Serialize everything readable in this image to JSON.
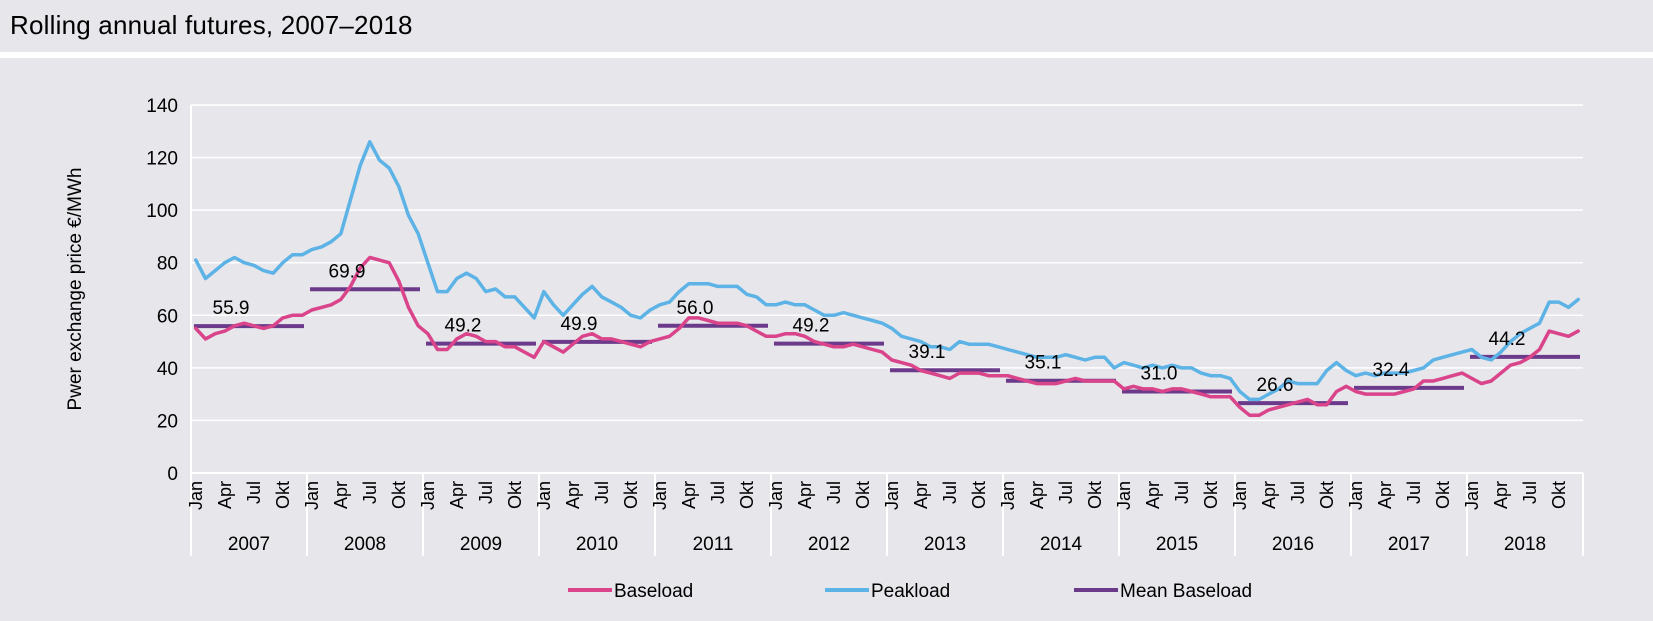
{
  "title": "Rolling annual futures, 2007–2018",
  "colors": {
    "background": "#e6e6eb",
    "baseload": "#d9448a",
    "peakload": "#5db3e6",
    "mean_baseload": "#6b3a8a",
    "grid": "#ffffff"
  },
  "chart_data": {
    "type": "line",
    "title": "",
    "ylabel": "Pwer exchange price €/MWh",
    "xlabel": "",
    "ylim": [
      0,
      140
    ],
    "yticks": [
      0,
      20,
      40,
      60,
      80,
      100,
      120,
      140
    ],
    "years": [
      "2007",
      "2008",
      "2009",
      "2010",
      "2011",
      "2012",
      "2013",
      "2014",
      "2015",
      "2016",
      "2017",
      "2018"
    ],
    "month_tick_labels": [
      "Jan",
      "Apr",
      "Jul",
      "Okt"
    ],
    "grid": "horizontal",
    "legend_position": "bottom",
    "series": [
      {
        "name": "Baseload",
        "values": [
          55,
          51,
          53,
          54,
          56,
          57,
          56,
          55,
          56,
          59,
          60,
          60,
          62,
          63,
          64,
          66,
          71,
          78,
          82,
          81,
          80,
          73,
          63,
          56,
          53,
          47,
          47,
          51,
          53,
          52,
          50,
          50,
          48,
          48,
          46,
          44,
          50,
          48,
          46,
          49,
          52,
          53,
          51,
          51,
          50,
          49,
          48,
          50,
          51,
          52,
          55,
          59,
          59,
          58,
          57,
          57,
          57,
          56,
          54,
          52,
          52,
          53,
          53,
          52,
          50,
          49,
          48,
          48,
          49,
          48,
          47,
          46,
          43,
          42,
          41,
          39,
          38,
          37,
          36,
          38,
          38,
          38,
          37,
          37,
          37,
          36,
          35,
          34,
          34,
          34,
          35,
          36,
          35,
          35,
          35,
          35,
          32,
          33,
          32,
          32,
          31,
          32,
          32,
          31,
          30,
          29,
          29,
          29,
          25,
          22,
          22,
          24,
          25,
          26,
          27,
          28,
          26,
          26,
          31,
          33,
          31,
          30,
          30,
          30,
          30,
          31,
          32,
          35,
          35,
          36,
          37,
          38,
          36,
          34,
          35,
          38,
          41,
          42,
          44,
          47,
          54,
          53,
          52,
          54
        ]
      },
      {
        "name": "Peakload",
        "values": [
          81,
          74,
          77,
          80,
          82,
          80,
          79,
          77,
          76,
          80,
          83,
          83,
          85,
          86,
          88,
          91,
          104,
          117,
          126,
          119,
          116,
          109,
          98,
          91,
          80,
          69,
          69,
          74,
          76,
          74,
          69,
          70,
          67,
          67,
          63,
          59,
          69,
          64,
          60,
          64,
          68,
          71,
          67,
          65,
          63,
          60,
          59,
          62,
          64,
          65,
          69,
          72,
          72,
          72,
          71,
          71,
          71,
          68,
          67,
          64,
          64,
          65,
          64,
          64,
          62,
          60,
          60,
          61,
          60,
          59,
          58,
          57,
          55,
          52,
          51,
          50,
          48,
          48,
          47,
          50,
          49,
          49,
          49,
          48,
          47,
          46,
          45,
          44,
          44,
          44,
          45,
          44,
          43,
          44,
          44,
          40,
          42,
          41,
          40,
          41,
          40,
          41,
          40,
          40,
          38,
          37,
          37,
          36,
          31,
          28,
          28,
          30,
          32,
          35,
          34,
          34,
          34,
          39,
          42,
          39,
          37,
          38,
          37,
          38,
          38,
          38,
          39,
          40,
          43,
          44,
          45,
          46,
          47,
          44,
          43,
          46,
          50,
          53,
          55,
          57,
          65,
          65,
          63,
          66
        ]
      }
    ],
    "mean_baseload": {
      "name": "Mean Baseload",
      "values": [
        55.9,
        69.9,
        49.2,
        49.9,
        56.0,
        49.2,
        39.1,
        35.1,
        31.0,
        26.6,
        32.4,
        44.2
      ],
      "labels": [
        "55.9",
        "69.9",
        "49.2",
        "49.9",
        "56.0",
        "49.2",
        "39.1",
        "35.1",
        "31.0",
        "26.6",
        "32.4",
        "44.2"
      ]
    },
    "legend": [
      "Baseload",
      "Peakload",
      "Mean Baseload"
    ]
  }
}
